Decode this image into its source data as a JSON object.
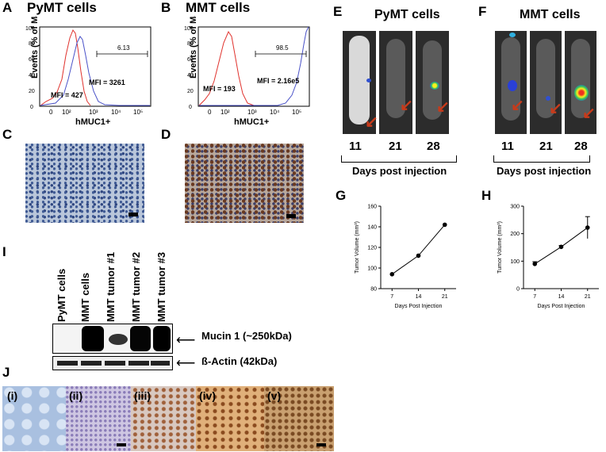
{
  "panels": {
    "A": {
      "letter": "A",
      "title": "PyMT cells",
      "ylabel": "Events (% of Max)",
      "xlabel": "hMUC1+",
      "gate": "6.13",
      "mfi_red": "MFI = 427",
      "mfi_blue": "MFI = 3261",
      "yticks": [
        "0",
        "20",
        "40",
        "60",
        "80",
        "100"
      ],
      "xticks": [
        "0",
        "10²",
        "10³",
        "10⁴",
        "10⁵"
      ]
    },
    "B": {
      "letter": "B",
      "title": "MMT cells",
      "ylabel": "Events (% of Max)",
      "xlabel": "hMUC1+",
      "gate": "98.5",
      "mfi_red": "MFI = 193",
      "mfi_blue": "MFI = 2.16e5",
      "yticks": [
        "0",
        "20",
        "40",
        "60",
        "80",
        "100"
      ],
      "xticks": [
        "0",
        "10²",
        "10³",
        "10⁴",
        "10⁵"
      ]
    },
    "C": {
      "letter": "C"
    },
    "D": {
      "letter": "D"
    },
    "E": {
      "letter": "E",
      "title": "PyMT cells",
      "days": [
        "11",
        "21",
        "28"
      ],
      "caption": "Days post injection"
    },
    "F": {
      "letter": "F",
      "title": "MMT cells",
      "days": [
        "11",
        "21",
        "28"
      ],
      "caption": "Days post injection"
    },
    "G": {
      "letter": "G"
    },
    "H": {
      "letter": "H"
    },
    "I": {
      "letter": "I",
      "lanes": [
        "PyMT cells",
        "MMT cells",
        "MMT tumor #1",
        "MMT tumor #2",
        "MMT tumor #3"
      ],
      "band1": "Mucin 1 (~250kDa)",
      "band2": "ß-Actin (42kDa)"
    },
    "J": {
      "letter": "J",
      "subpanels": [
        "(i)",
        "(ii)",
        "(iii)",
        "(iv)",
        "(v)"
      ]
    }
  },
  "colors": {
    "red_hist": "#e0322d",
    "blue_hist": "#4a52c8",
    "arrow": "#c83a1a"
  },
  "chart_data": [
    {
      "type": "line",
      "panel": "G",
      "x": [
        7,
        14,
        21
      ],
      "values": [
        94,
        112,
        142
      ],
      "xlabel": "Days Post Injection",
      "ylabel": "Tumor Volume (mm³)",
      "ylim": [
        80,
        160
      ],
      "yticks": [
        80,
        100,
        120,
        140,
        160
      ],
      "xticks": [
        7,
        14,
        21
      ]
    },
    {
      "type": "line",
      "panel": "H",
      "x": [
        7,
        14,
        21
      ],
      "values": [
        90,
        152,
        222
      ],
      "error": [
        8,
        5,
        40
      ],
      "xlabel": "Days Post Injection",
      "ylabel": "Tumor Volume (mm³)",
      "ylim": [
        0,
        300
      ],
      "yticks": [
        0,
        100,
        200,
        300
      ],
      "xticks": [
        7,
        14,
        21
      ]
    }
  ]
}
